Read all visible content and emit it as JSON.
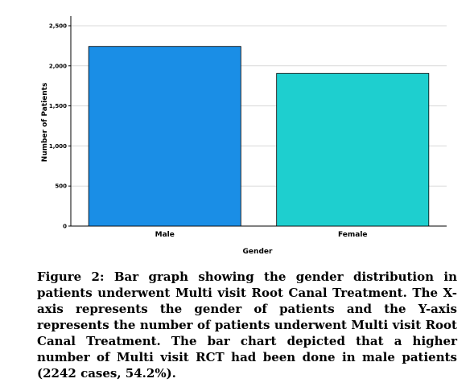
{
  "chart_data": {
    "type": "bar",
    "categories": [
      "Male",
      "Female"
    ],
    "values": [
      2242,
      1905
    ],
    "colors": [
      "#1a8ee6",
      "#1ecfcf"
    ],
    "xlabel": "Gender",
    "ylabel": "Number of Patients",
    "ylim": [
      0,
      2500
    ],
    "yticks": [
      0,
      500,
      1000,
      1500,
      2000,
      2500
    ],
    "ytick_labels": [
      "0",
      "500",
      "1,000",
      "1,500",
      "2,000",
      "2,500"
    ],
    "grid": true
  },
  "caption": "Figure 2: Bar graph showing the gender distribution in patients underwent Multi visit Root Canal Treatment. The X-axis represents the gender of patients and the Y-axis represents the number of patients underwent Multi visit Root Canal Treatment. The bar chart depicted that a higher number of Multi visit RCT had been done in male patients (2242 cases, 54.2%)."
}
